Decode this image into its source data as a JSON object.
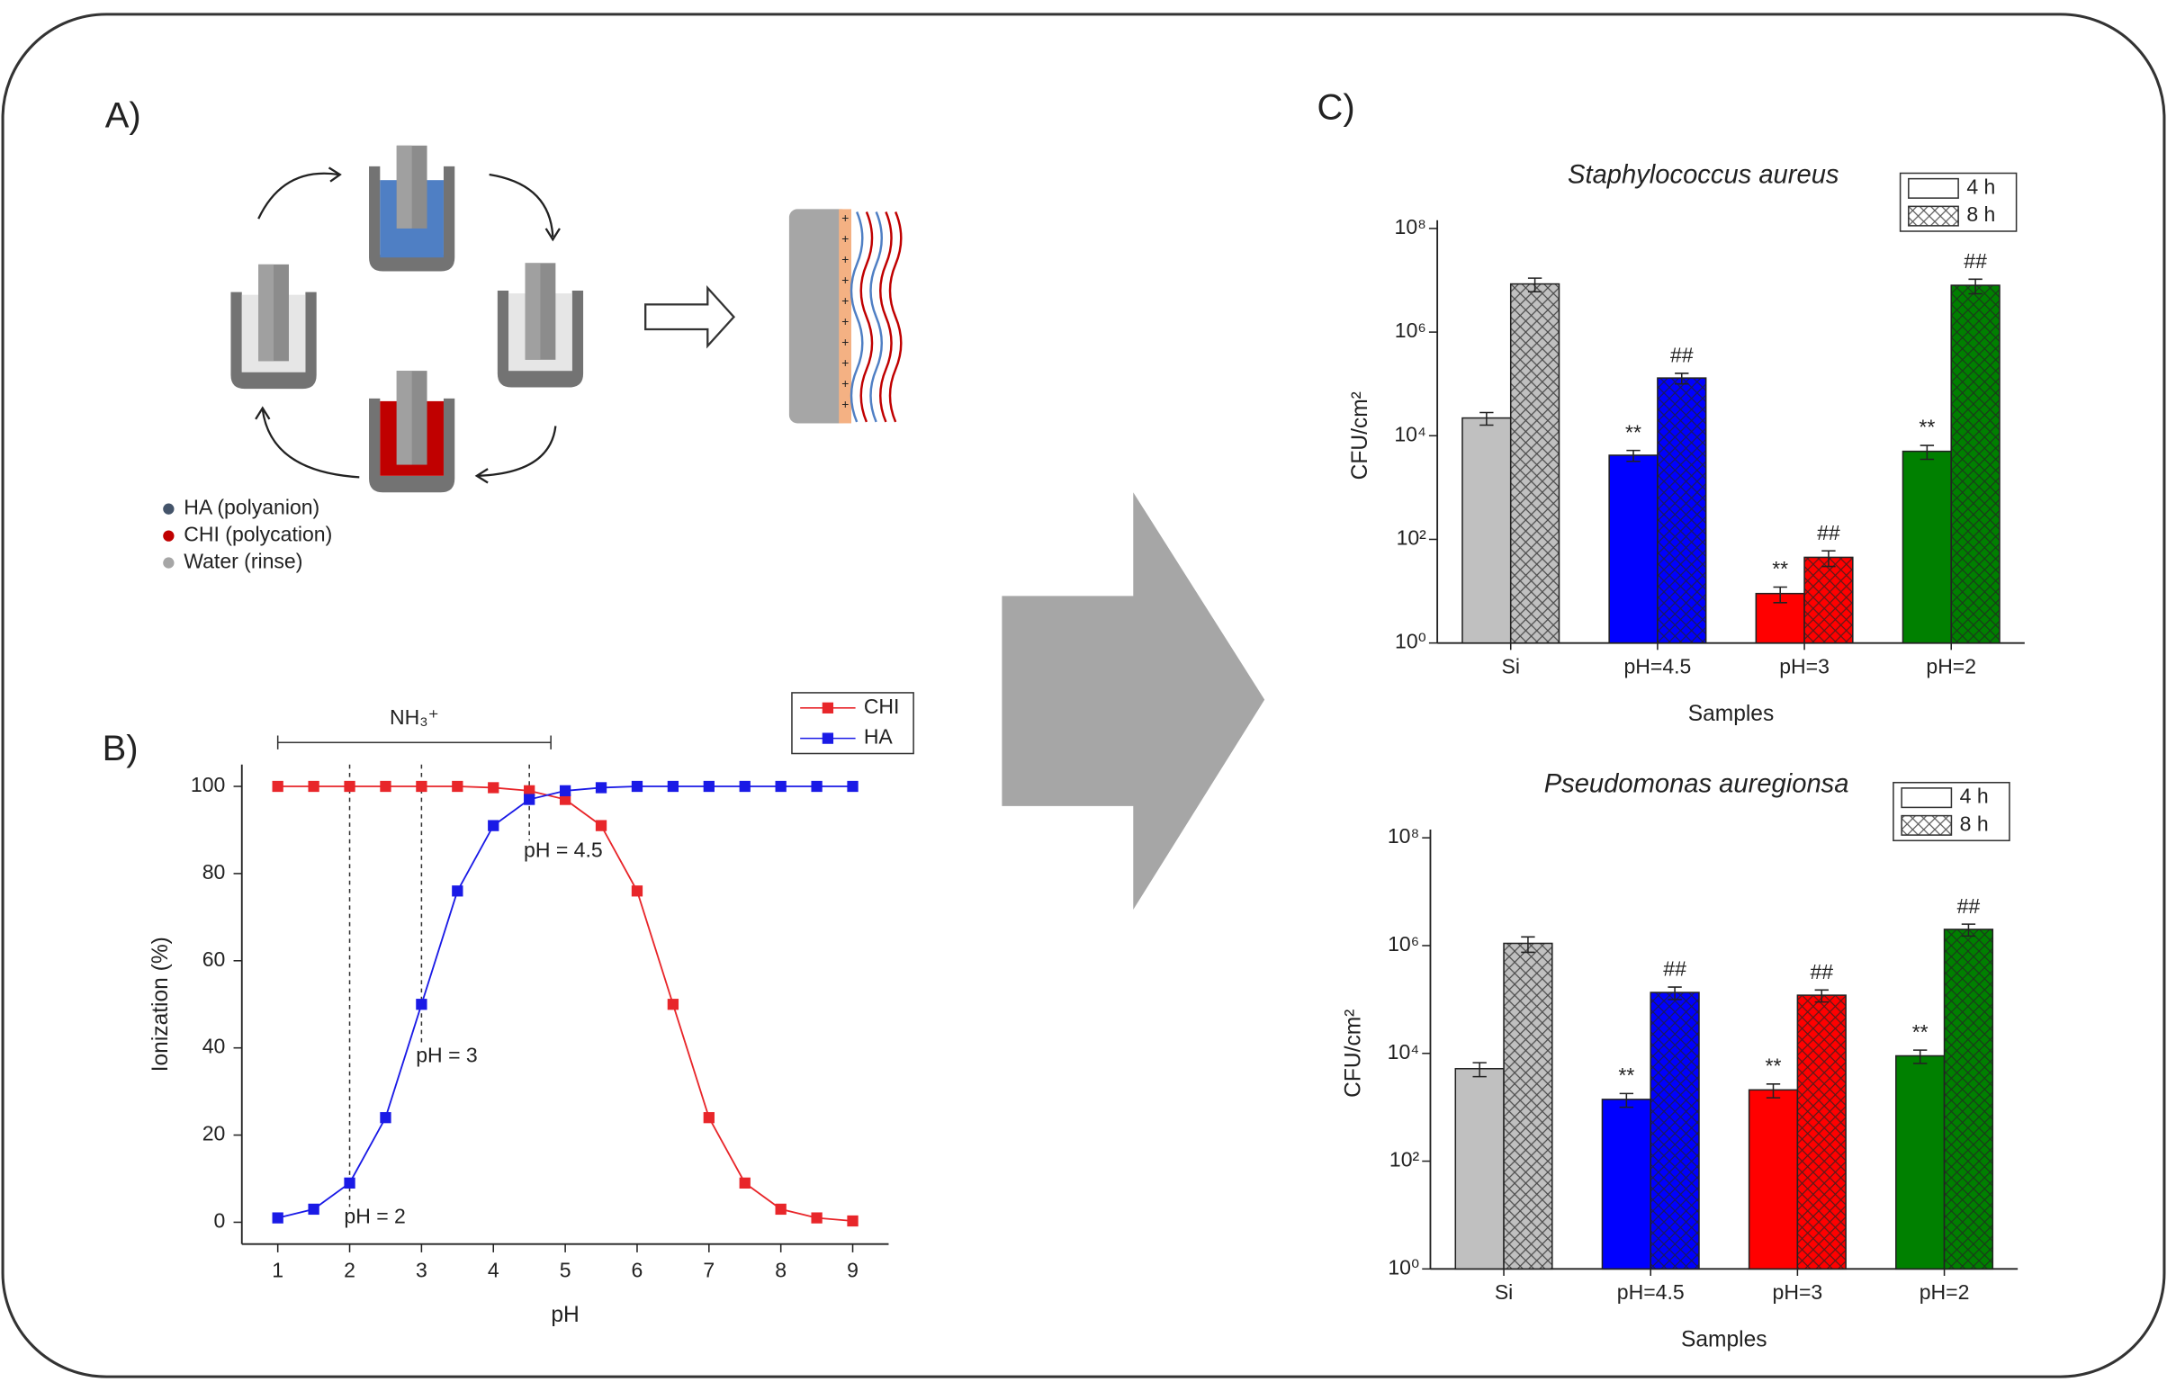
{
  "panel_labels": [
    "A)",
    "B)",
    "C)"
  ],
  "legend_a": [
    {
      "label": "HA (polyanion)",
      "color": "#44546a"
    },
    {
      "label": "CHI (polycation)",
      "color": "#c00000"
    },
    {
      "label": "Water (rinse)",
      "color": "#a6a6a6"
    }
  ],
  "chart_data": [
    {
      "type": "line",
      "xlabel": "pH",
      "ylabel": "Ionization (%)",
      "x": [
        1,
        1.5,
        2,
        2.5,
        3,
        3.5,
        4,
        4.5,
        5,
        5.5,
        6,
        6.5,
        7,
        7.5,
        8,
        8.5,
        9
      ],
      "series": [
        {
          "name": "CHI",
          "color": "#e8262a",
          "values": [
            100,
            100,
            100,
            100,
            100,
            100,
            99.7,
            99,
            97,
            91,
            76,
            50,
            24,
            9,
            3,
            1,
            0.3
          ]
        },
        {
          "name": "HA",
          "color": "#1a1ae6",
          "values": [
            1,
            3,
            9,
            24,
            50,
            76,
            91,
            97,
            99,
            99.7,
            100,
            100,
            100,
            100,
            100,
            100,
            100
          ]
        }
      ],
      "xlim": [
        0.5,
        9.5
      ],
      "ylim": [
        -5,
        105
      ],
      "xticks": [
        1,
        2,
        3,
        4,
        5,
        6,
        7,
        8,
        9
      ],
      "yticks": [
        0,
        20,
        40,
        60,
        80,
        100
      ],
      "legend": "upper right",
      "annotations": [
        {
          "text": "pH = 2",
          "x": 2,
          "y": 1
        },
        {
          "text": "pH = 3",
          "x": 3,
          "y": 38
        },
        {
          "text": "pH = 4.5",
          "x": 4.5,
          "y": 85
        }
      ],
      "bracket": {
        "text": "NH₃⁺",
        "x": [
          1,
          4.8
        ]
      }
    },
    {
      "type": "bar",
      "title": "Staphylococcus aureus",
      "xlabel": "Samples",
      "ylabel": "CFU/cm²",
      "yscale": "log",
      "categories": [
        "Si",
        "pH=4.5",
        "pH=3",
        "pH=2"
      ],
      "colors": [
        "#c0c0c0",
        "#0000ff",
        "#ff0000",
        "#008000"
      ],
      "series": [
        {
          "name": "4 h",
          "pattern": "none",
          "values": [
            22000,
            4200,
            9,
            5000
          ],
          "errors": [
            6000,
            1000,
            3,
            1500
          ],
          "annotations": [
            null,
            "**",
            "**",
            "**"
          ]
        },
        {
          "name": "8 h",
          "pattern": "crosshatch",
          "values": [
            8500000,
            130000,
            45,
            8000000
          ],
          "errors": [
            2500000,
            30000,
            15,
            2500000
          ],
          "annotations": [
            null,
            "##",
            "##",
            "##"
          ]
        }
      ],
      "ylim": [
        1,
        100000000
      ],
      "yticks": [
        {
          "value": 1,
          "label": "10⁰"
        },
        {
          "value": 100,
          "label": "10²"
        },
        {
          "value": 10000,
          "label": "10⁴"
        },
        {
          "value": 1000000,
          "label": "10⁶"
        },
        {
          "value": 100000000,
          "label": "10⁸"
        }
      ],
      "legend": "upper right"
    },
    {
      "type": "bar",
      "title": "Pseudomonas auregionsa",
      "xlabel": "Samples",
      "ylabel": "CFU/cm²",
      "yscale": "log",
      "categories": [
        "Si",
        "pH=4.5",
        "pH=3",
        "pH=2"
      ],
      "colors": [
        "#c0c0c0",
        "#0000ff",
        "#ff0000",
        "#008000"
      ],
      "series": [
        {
          "name": "4 h",
          "pattern": "none",
          "values": [
            5200,
            1400,
            2100,
            9000
          ],
          "errors": [
            1500,
            400,
            600,
            2500
          ],
          "annotations": [
            null,
            "**",
            "**",
            "**"
          ]
        },
        {
          "name": "8 h",
          "pattern": "crosshatch",
          "values": [
            1100000,
            135000,
            120000,
            2000000
          ],
          "errors": [
            350000,
            35000,
            30000,
            500000
          ],
          "annotations": [
            null,
            "##",
            "##",
            "##"
          ]
        }
      ],
      "ylim": [
        1,
        100000000
      ],
      "yticks": [
        {
          "value": 1,
          "label": "10⁰"
        },
        {
          "value": 100,
          "label": "10²"
        },
        {
          "value": 10000,
          "label": "10⁴"
        },
        {
          "value": 1000000,
          "label": "10⁶"
        },
        {
          "value": 100000000,
          "label": "10⁸"
        }
      ],
      "legend": "upper right"
    }
  ]
}
